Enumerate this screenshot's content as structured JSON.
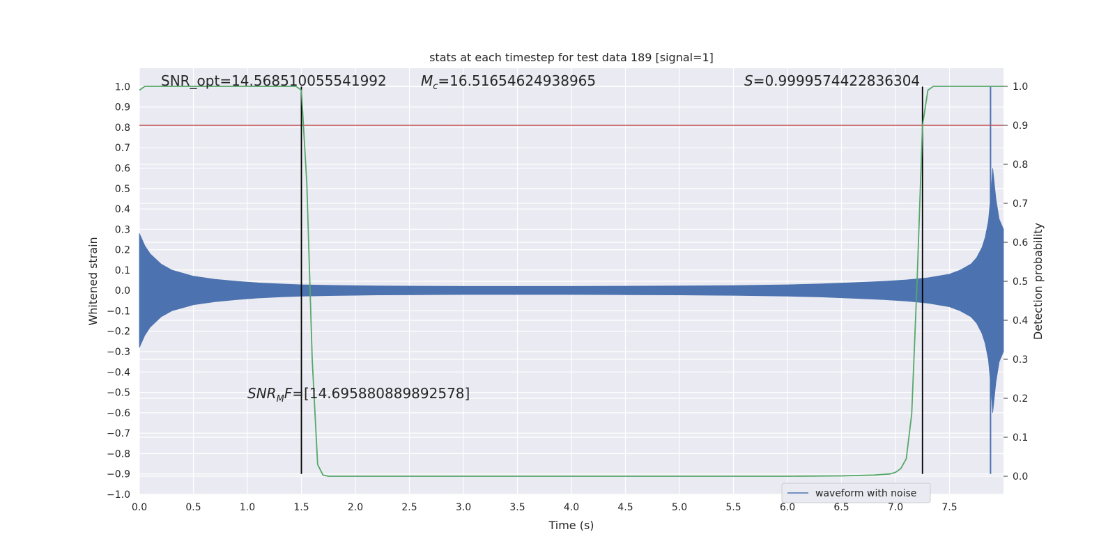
{
  "chart_data": {
    "type": "line",
    "title": "stats at each timestep for test data 189 [signal=1]",
    "xlabel": "Time (s)",
    "ylabel": "Whitened strain",
    "y2label": "Detection probability",
    "xlim": [
      0.0,
      8.0
    ],
    "ylim": [
      -1.0,
      1.09
    ],
    "y2lim": [
      -0.0464,
      1.0464
    ],
    "grid": true,
    "x_ticks": [
      "0.0",
      "0.5",
      "1.0",
      "1.5",
      "2.0",
      "2.5",
      "3.0",
      "3.5",
      "4.0",
      "4.5",
      "5.0",
      "5.5",
      "6.0",
      "6.5",
      "7.0",
      "7.5"
    ],
    "y_ticks": [
      "1.0",
      "0.9",
      "0.8",
      "0.7",
      "0.6",
      "0.5",
      "0.4",
      "0.3",
      "0.2",
      "0.1",
      "0.0",
      "−0.1",
      "−0.2",
      "−0.3",
      "−0.4",
      "−0.5",
      "−0.6",
      "−0.7",
      "−0.8",
      "−0.9",
      "−1.0"
    ],
    "y2_ticks": [
      "1.0",
      "0.9",
      "0.8",
      "0.7",
      "0.6",
      "0.5",
      "0.4",
      "0.3",
      "0.2",
      "0.1",
      "0.0"
    ],
    "annotations": {
      "snr_opt": "SNR_opt=14.568510055541992",
      "mc_symbol": "M",
      "mc_sub": "c",
      "mc_value": "=16.51654624938965",
      "s_symbol": "S",
      "s_value": "=0.9999574422836304",
      "snrmf_symbol": "SNR",
      "snrmf_sub": "M",
      "snrmf_symbol2": "F",
      "snrmf_value": "=[14.695880889892578]"
    },
    "legend": {
      "label": "waveform with noise",
      "placement": "lower-right"
    },
    "colors": {
      "waveform": "#4c72b0",
      "probability": "#55a868",
      "threshold": "#c44e52",
      "marker": "#000000",
      "background": "#eaeaf2",
      "grid": "#ffffff"
    },
    "series": [
      {
        "name": "waveform with noise",
        "kind": "envelope",
        "x": [
          0.0,
          0.05,
          0.1,
          0.2,
          0.3,
          0.4,
          0.5,
          0.7,
          0.9,
          1.1,
          1.3,
          1.5,
          1.8,
          2.2,
          2.6,
          3.0,
          3.5,
          4.0,
          4.5,
          5.0,
          5.5,
          6.0,
          6.3,
          6.6,
          6.9,
          7.1,
          7.3,
          7.5,
          7.6,
          7.7,
          7.75,
          7.8,
          7.83,
          7.86,
          7.88,
          7.9,
          7.93,
          7.96,
          8.0
        ],
        "upper": [
          0.28,
          0.22,
          0.18,
          0.13,
          0.1,
          0.085,
          0.07,
          0.055,
          0.045,
          0.037,
          0.032,
          0.028,
          0.025,
          0.022,
          0.021,
          0.02,
          0.02,
          0.02,
          0.021,
          0.022,
          0.024,
          0.028,
          0.032,
          0.038,
          0.045,
          0.052,
          0.062,
          0.08,
          0.1,
          0.13,
          0.16,
          0.21,
          0.26,
          0.34,
          0.45,
          0.6,
          0.45,
          0.35,
          0.3
        ],
        "lower": [
          -0.28,
          -0.22,
          -0.18,
          -0.13,
          -0.1,
          -0.085,
          -0.07,
          -0.055,
          -0.045,
          -0.037,
          -0.032,
          -0.028,
          -0.025,
          -0.022,
          -0.021,
          -0.02,
          -0.02,
          -0.02,
          -0.021,
          -0.022,
          -0.024,
          -0.028,
          -0.032,
          -0.038,
          -0.045,
          -0.052,
          -0.062,
          -0.08,
          -0.1,
          -0.13,
          -0.16,
          -0.21,
          -0.26,
          -0.34,
          -0.45,
          -0.6,
          -0.45,
          -0.35,
          -0.3
        ]
      },
      {
        "name": "",
        "kind": "spike",
        "x": 7.88,
        "y_from": -0.9,
        "y_to": 1.0
      },
      {
        "name": "",
        "kind": "probability",
        "axis": "right",
        "x": [
          0.0,
          0.05,
          0.25,
          0.5,
          1.0,
          1.25,
          1.45,
          1.5,
          1.55,
          1.6,
          1.65,
          1.7,
          1.75,
          2.0,
          3.0,
          4.0,
          5.0,
          6.0,
          6.5,
          6.8,
          6.95,
          7.0,
          7.05,
          7.1,
          7.15,
          7.2,
          7.25,
          7.3,
          7.35,
          7.4,
          7.45,
          7.5,
          8.0
        ],
        "y": [
          0.99,
          1.0,
          1.0,
          1.0,
          1.0,
          1.0,
          1.0,
          0.99,
          0.75,
          0.3,
          0.03,
          0.003,
          0.0,
          0.0,
          0.0,
          0.0,
          0.0,
          0.0,
          0.001,
          0.003,
          0.006,
          0.01,
          0.02,
          0.045,
          0.16,
          0.5,
          0.9,
          0.99,
          1.0,
          1.0,
          1.0,
          1.0,
          1.0
        ]
      }
    ],
    "reference_lines": {
      "threshold_y2": 0.9,
      "vertical_x": [
        1.5,
        7.25
      ],
      "vertical_y_range": [
        -0.9,
        1.0
      ]
    }
  }
}
